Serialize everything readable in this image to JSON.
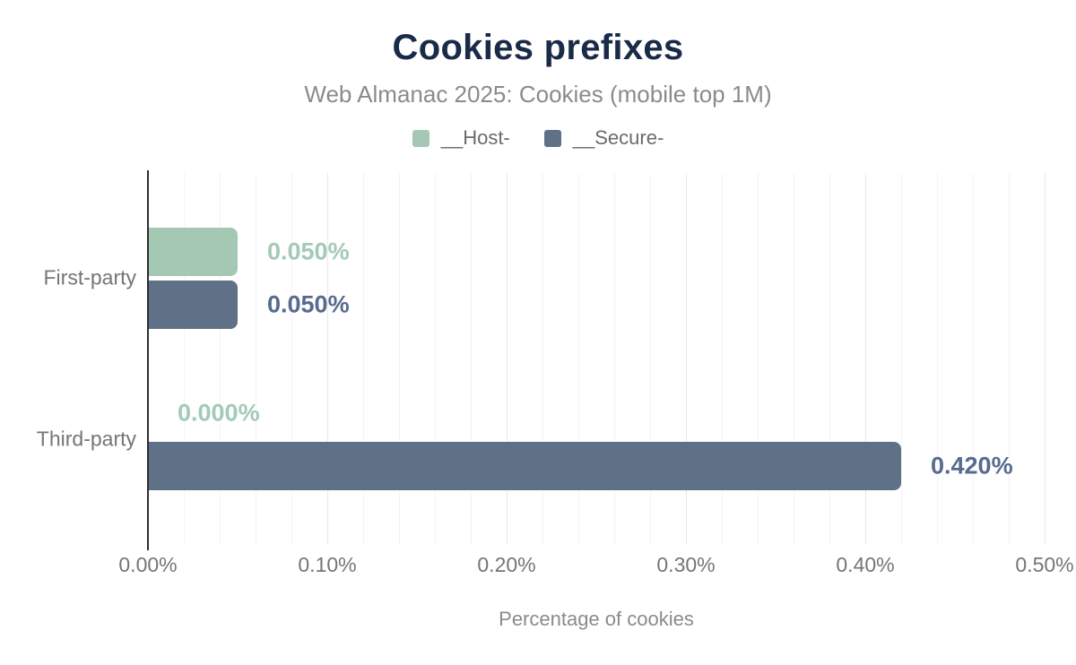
{
  "chart_data": {
    "type": "bar",
    "orientation": "horizontal",
    "title": "Cookies prefixes",
    "subtitle": "Web Almanac 2025: Cookies (mobile top 1M)",
    "categories": [
      "First-party",
      "Third-party"
    ],
    "series": [
      {
        "name": "__Host-",
        "color": "#a5c8b5",
        "label_color": "#a3cab4",
        "values": [
          0.05,
          0.0
        ],
        "value_labels": [
          "0.050%",
          "0.000%"
        ]
      },
      {
        "name": "__Secure-",
        "color": "#5f7186",
        "label_color": "#566b8e",
        "values": [
          0.05,
          0.42
        ],
        "value_labels": [
          "0.050%",
          "0.420%"
        ]
      }
    ],
    "xlabel": "Percentage of cookies",
    "ylabel": "",
    "xlim": [
      0,
      0.5
    ],
    "x_ticks": [
      {
        "value": 0.0,
        "label": "0.00%"
      },
      {
        "value": 0.1,
        "label": "0.10%"
      },
      {
        "value": 0.2,
        "label": "0.20%"
      },
      {
        "value": 0.3,
        "label": "0.30%"
      },
      {
        "value": 0.4,
        "label": "0.40%"
      },
      {
        "value": 0.5,
        "label": "0.50%"
      }
    ],
    "grid": {
      "show": true,
      "minor_step": 0.02,
      "major_step": 0.1
    },
    "legend_position": "top"
  },
  "colors": {
    "title": "#1a2b49",
    "subtitle": "#8b8b8b",
    "legend_text": "#6b6b6b",
    "axis_text": "#757575",
    "axis_line": "#2e2e2e",
    "grid_minor": "#f4f4f4",
    "grid_major": "#e9e9e9",
    "background": "#ffffff"
  }
}
